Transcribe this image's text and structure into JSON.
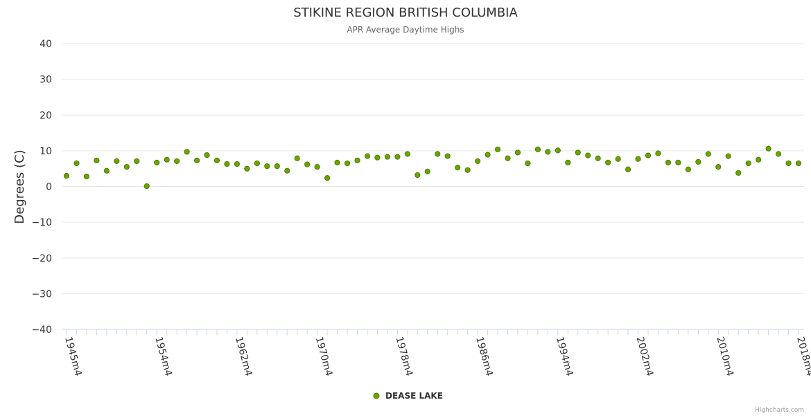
{
  "chart_data": {
    "type": "scatter",
    "title": "STIKINE REGION BRITISH COLUMBIA",
    "subtitle": "APR Average Daytime Highs",
    "xlabel": "",
    "ylabel": "Degrees (C)",
    "ylim": [
      -40,
      40
    ],
    "yticks": [
      "40",
      "30",
      "20",
      "10",
      "0",
      "−10",
      "−20",
      "−30",
      "−40"
    ],
    "xrange": [
      1945,
      2018
    ],
    "xtick_years": [
      1945,
      1954,
      1962,
      1970,
      1978,
      1986,
      1994,
      2002,
      2010,
      2018
    ],
    "xtick_labels": [
      "1945m4",
      "1954m4",
      "1962m4",
      "1970m4",
      "1978m4",
      "1986m4",
      "1994m4",
      "2002m4",
      "2010m4",
      "2018m4"
    ],
    "series": [
      {
        "name": "DEASE LAKE",
        "color": "#6aa500",
        "x": [
          1945,
          1946,
          1947,
          1948,
          1949,
          1950,
          1951,
          1952,
          1953,
          1954,
          1955,
          1956,
          1957,
          1958,
          1959,
          1960,
          1961,
          1962,
          1963,
          1964,
          1965,
          1966,
          1967,
          1968,
          1969,
          1970,
          1971,
          1972,
          1973,
          1974,
          1975,
          1976,
          1977,
          1978,
          1979,
          1980,
          1981,
          1982,
          1983,
          1984,
          1985,
          1986,
          1987,
          1988,
          1989,
          1990,
          1991,
          1992,
          1993,
          1994,
          1995,
          1996,
          1997,
          1998,
          1999,
          2000,
          2001,
          2002,
          2003,
          2004,
          2005,
          2006,
          2007,
          2008,
          2009,
          2010,
          2011,
          2012,
          2013,
          2014,
          2015,
          2016,
          2017,
          2018
        ],
        "values": [
          3.0,
          6.5,
          2.8,
          7.3,
          4.4,
          7.1,
          5.5,
          7.1,
          0.1,
          6.7,
          7.5,
          7.1,
          9.7,
          7.3,
          8.8,
          7.3,
          6.3,
          6.3,
          5.0,
          6.5,
          5.7,
          5.7,
          4.4,
          7.9,
          6.2,
          5.5,
          2.4,
          6.7,
          6.5,
          7.3,
          8.5,
          8.1,
          8.3,
          8.3,
          9.1,
          3.2,
          4.2,
          9.1,
          8.5,
          5.3,
          4.6,
          7.1,
          8.9,
          10.4,
          7.9,
          9.5,
          6.5,
          10.4,
          9.7,
          10.1,
          6.7,
          9.5,
          8.7,
          7.9,
          6.7,
          7.7,
          4.8,
          7.7,
          8.7,
          9.3,
          6.7,
          6.7,
          4.8,
          6.9,
          9.1,
          5.5,
          8.5,
          3.8,
          6.5,
          7.5,
          10.6,
          9.1,
          6.5,
          6.5
        ]
      }
    ]
  },
  "credits": "Highcharts.com"
}
